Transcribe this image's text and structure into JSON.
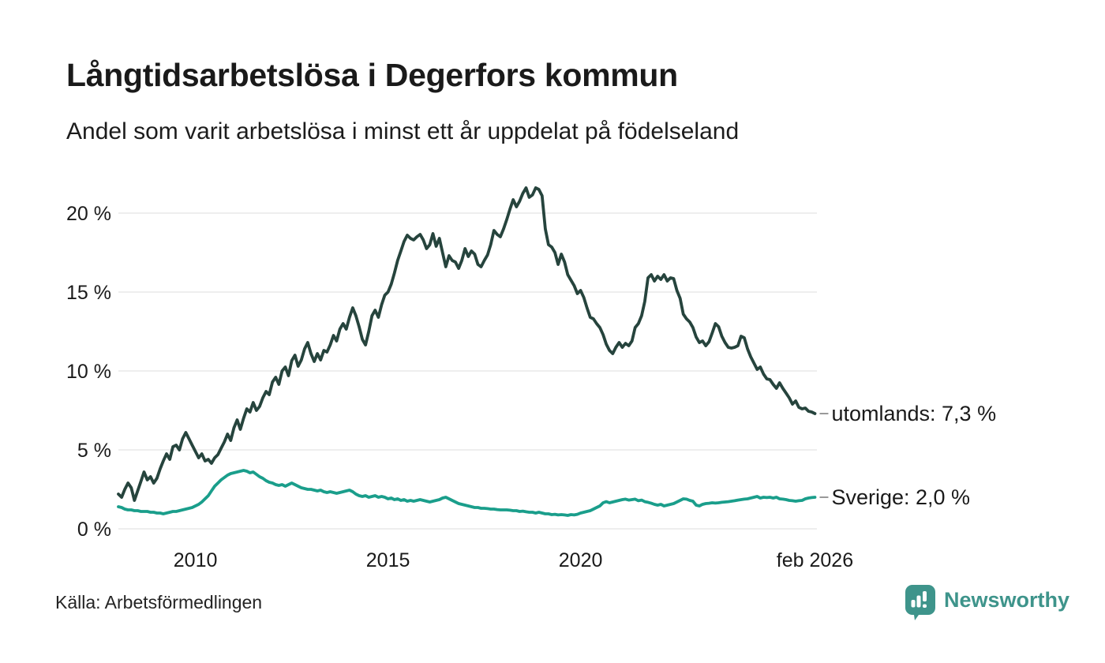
{
  "chart_data": {
    "type": "line",
    "title": "Långtidsarbetslösa i Degerfors kommun",
    "subtitle": "Andel som varit arbetslösa i minst ett år uppdelat på födelseland",
    "grid": true,
    "xlim": [
      2008,
      2026.25
    ],
    "ylim": [
      0,
      22
    ],
    "x_ticks": [
      {
        "label": "2010",
        "year": 2010
      },
      {
        "label": "2015",
        "year": 2015
      },
      {
        "label": "2020",
        "year": 2020
      },
      {
        "label": "feb 2026",
        "year": 2026.083
      }
    ],
    "y_ticks": [
      {
        "label": "0 %",
        "value": 0
      },
      {
        "label": "5 %",
        "value": 5
      },
      {
        "label": "10 %",
        "value": 10
      },
      {
        "label": "15 %",
        "value": 15
      },
      {
        "label": "20 %",
        "value": 20
      }
    ],
    "x_start_year": 2008,
    "x_interval_months": 1,
    "series": [
      {
        "name": "Sverige",
        "color": "#1a9e8b",
        "end_label": "Sverige: 2,0 %",
        "values": [
          1.4,
          1.35,
          1.25,
          1.2,
          1.2,
          1.15,
          1.15,
          1.1,
          1.1,
          1.1,
          1.05,
          1.05,
          1.0,
          1.0,
          0.95,
          1.0,
          1.05,
          1.1,
          1.1,
          1.15,
          1.2,
          1.25,
          1.3,
          1.35,
          1.45,
          1.55,
          1.7,
          1.9,
          2.1,
          2.4,
          2.7,
          2.9,
          3.1,
          3.25,
          3.4,
          3.5,
          3.55,
          3.6,
          3.65,
          3.7,
          3.65,
          3.55,
          3.6,
          3.45,
          3.3,
          3.2,
          3.05,
          2.95,
          2.9,
          2.8,
          2.75,
          2.8,
          2.7,
          2.8,
          2.9,
          2.8,
          2.7,
          2.6,
          2.55,
          2.5,
          2.5,
          2.45,
          2.4,
          2.45,
          2.35,
          2.3,
          2.35,
          2.3,
          2.25,
          2.3,
          2.35,
          2.4,
          2.45,
          2.35,
          2.2,
          2.1,
          2.05,
          2.1,
          2.0,
          2.05,
          2.1,
          2.0,
          2.05,
          2.0,
          1.9,
          1.95,
          1.85,
          1.9,
          1.8,
          1.85,
          1.75,
          1.8,
          1.75,
          1.8,
          1.85,
          1.8,
          1.75,
          1.7,
          1.75,
          1.8,
          1.85,
          1.95,
          2.0,
          1.9,
          1.8,
          1.7,
          1.6,
          1.55,
          1.5,
          1.45,
          1.4,
          1.35,
          1.35,
          1.3,
          1.3,
          1.28,
          1.25,
          1.25,
          1.22,
          1.2,
          1.2,
          1.2,
          1.18,
          1.15,
          1.15,
          1.1,
          1.12,
          1.08,
          1.05,
          1.05,
          1.0,
          1.05,
          1.0,
          0.95,
          0.95,
          0.9,
          0.92,
          0.88,
          0.9,
          0.88,
          0.85,
          0.9,
          0.88,
          0.92,
          1.0,
          1.05,
          1.1,
          1.15,
          1.25,
          1.35,
          1.45,
          1.65,
          1.72,
          1.65,
          1.7,
          1.75,
          1.8,
          1.85,
          1.88,
          1.82,
          1.85,
          1.88,
          1.78,
          1.82,
          1.72,
          1.68,
          1.62,
          1.55,
          1.5,
          1.55,
          1.45,
          1.5,
          1.55,
          1.6,
          1.7,
          1.8,
          1.9,
          1.88,
          1.8,
          1.75,
          1.5,
          1.45,
          1.55,
          1.6,
          1.62,
          1.65,
          1.63,
          1.65,
          1.68,
          1.7,
          1.72,
          1.75,
          1.78,
          1.82,
          1.85,
          1.88,
          1.9,
          1.95,
          2.0,
          2.05,
          1.95,
          2.0,
          1.98,
          2.0,
          1.95,
          2.0,
          1.9,
          1.88,
          1.85,
          1.8,
          1.78,
          1.75,
          1.78,
          1.8,
          1.9,
          1.95,
          1.98,
          2.0
        ]
      },
      {
        "name": "utomlands",
        "color": "#26443d",
        "end_label": "utomlands: 7,3 %",
        "values": [
          2.2,
          2.0,
          2.5,
          2.9,
          2.6,
          1.8,
          2.4,
          3.0,
          3.6,
          3.1,
          3.3,
          2.9,
          3.2,
          3.8,
          4.3,
          4.75,
          4.4,
          5.2,
          5.3,
          5.0,
          5.7,
          6.1,
          5.7,
          5.3,
          4.9,
          4.5,
          4.75,
          4.3,
          4.4,
          4.15,
          4.5,
          4.7,
          5.1,
          5.5,
          6.0,
          5.6,
          6.4,
          6.9,
          6.3,
          7.0,
          7.6,
          7.4,
          8.0,
          7.5,
          7.75,
          8.3,
          8.7,
          8.5,
          9.3,
          9.6,
          9.15,
          10.0,
          10.25,
          9.7,
          10.65,
          11.0,
          10.3,
          10.7,
          11.4,
          11.8,
          11.1,
          10.6,
          11.1,
          10.7,
          11.3,
          11.2,
          11.65,
          12.25,
          11.9,
          12.65,
          13.0,
          12.65,
          13.4,
          14.0,
          13.5,
          12.8,
          12.0,
          11.65,
          12.5,
          13.5,
          13.85,
          13.4,
          14.2,
          14.8,
          15.0,
          15.5,
          16.2,
          17.0,
          17.6,
          18.2,
          18.6,
          18.4,
          18.3,
          18.5,
          18.65,
          18.3,
          17.75,
          18.0,
          18.7,
          17.9,
          18.4,
          17.5,
          16.6,
          17.3,
          17.0,
          16.9,
          16.5,
          17.0,
          17.75,
          17.25,
          17.6,
          17.4,
          16.75,
          16.6,
          17.0,
          17.35,
          18.0,
          18.9,
          18.65,
          18.5,
          19.0,
          19.6,
          20.25,
          20.85,
          20.4,
          20.75,
          21.25,
          21.6,
          21.0,
          21.15,
          21.6,
          21.5,
          21.1,
          19.0,
          18.0,
          17.85,
          17.5,
          16.75,
          17.4,
          16.9,
          16.1,
          15.75,
          15.4,
          14.9,
          15.1,
          14.65,
          14.0,
          13.4,
          13.3,
          13.0,
          12.75,
          12.3,
          11.7,
          11.3,
          11.1,
          11.5,
          11.8,
          11.5,
          11.75,
          11.6,
          11.9,
          12.75,
          13.0,
          13.5,
          14.4,
          15.9,
          16.1,
          15.7,
          16.0,
          15.8,
          16.1,
          15.7,
          15.9,
          15.85,
          15.1,
          14.6,
          13.6,
          13.3,
          13.1,
          12.75,
          12.15,
          11.8,
          11.9,
          11.6,
          11.85,
          12.4,
          13.0,
          12.8,
          12.2,
          11.8,
          11.5,
          11.45,
          11.5,
          11.6,
          12.2,
          12.1,
          11.4,
          10.9,
          10.5,
          10.1,
          10.25,
          9.8,
          9.5,
          9.45,
          9.15,
          8.9,
          9.25,
          8.9,
          8.6,
          8.3,
          7.9,
          8.1,
          7.7,
          7.6,
          7.65,
          7.45,
          7.4,
          7.3
        ]
      }
    ]
  },
  "footer": {
    "source": "Källa: Arbetsförmedlingen",
    "brand": "Newsworthy"
  },
  "colors": {
    "background": "#ffffff",
    "text": "#1a1a1a",
    "grid": "#e8e8e8",
    "connector": "#999999",
    "brand_teal": "#3e948b"
  }
}
